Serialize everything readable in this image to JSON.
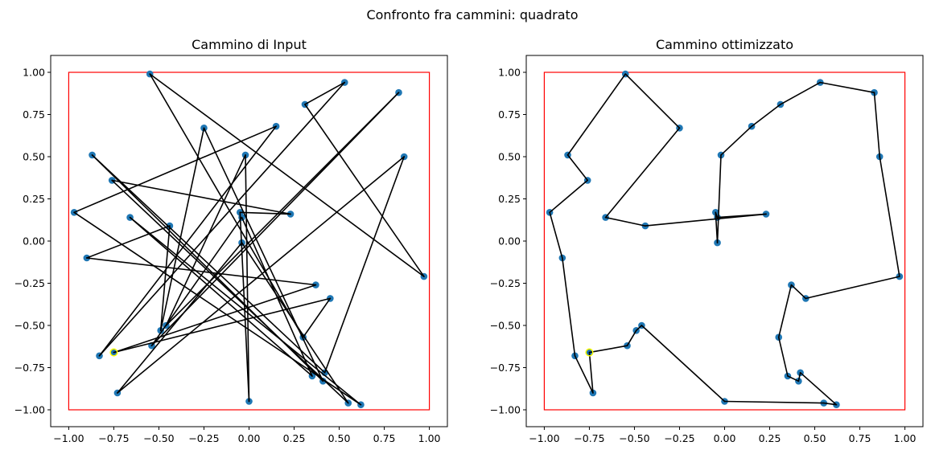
{
  "figure": {
    "suptitle": "Confronto fra cammini: quadrato"
  },
  "chart_data": [
    {
      "type": "scatter",
      "title": "Cammino di Input",
      "xlabel": "",
      "ylabel": "",
      "xlim": [
        -1.1,
        1.1
      ],
      "ylim": [
        -1.1,
        1.1
      ],
      "xticks": [
        -1.0,
        -0.75,
        -0.5,
        -0.25,
        0.0,
        0.25,
        0.5,
        0.75,
        1.0
      ],
      "yticks": [
        -1.0,
        -0.75,
        -0.5,
        -0.25,
        0.0,
        0.25,
        0.5,
        0.75,
        1.0
      ],
      "xtick_labels": [
        "−1.00",
        "−0.75",
        "−0.50",
        "−0.25",
        "0.00",
        "0.25",
        "0.50",
        "0.75",
        "1.00"
      ],
      "ytick_labels": [
        "−1.00",
        "−0.75",
        "−0.50",
        "−0.25",
        "0.00",
        "0.25",
        "0.50",
        "0.75",
        "1.00"
      ],
      "boundary": {
        "x0": -1.0,
        "y0": -1.0,
        "x1": 1.0,
        "y1": 1.0,
        "color": "#ff0000"
      },
      "point_color": "#1f77b4",
      "path_color": "#000000",
      "start_marker_color": "#ffff00",
      "grid": false,
      "points": [
        {
          "x": -0.55,
          "y": 0.99
        },
        {
          "x": 0.53,
          "y": 0.94
        },
        {
          "x": 0.83,
          "y": 0.88
        },
        {
          "x": 0.31,
          "y": 0.81
        },
        {
          "x": -0.25,
          "y": 0.67
        },
        {
          "x": 0.15,
          "y": 0.68
        },
        {
          "x": -0.87,
          "y": 0.51
        },
        {
          "x": -0.02,
          "y": 0.51
        },
        {
          "x": 0.86,
          "y": 0.5
        },
        {
          "x": -0.76,
          "y": 0.36
        },
        {
          "x": -0.97,
          "y": 0.17
        },
        {
          "x": -0.05,
          "y": 0.17
        },
        {
          "x": -0.04,
          "y": 0.14
        },
        {
          "x": 0.23,
          "y": 0.16
        },
        {
          "x": -0.66,
          "y": 0.14
        },
        {
          "x": -0.44,
          "y": 0.09
        },
        {
          "x": -0.04,
          "y": -0.01
        },
        {
          "x": -0.9,
          "y": -0.1
        },
        {
          "x": 0.97,
          "y": -0.21
        },
        {
          "x": 0.37,
          "y": -0.26
        },
        {
          "x": 0.45,
          "y": -0.34
        },
        {
          "x": -0.46,
          "y": -0.5
        },
        {
          "x": -0.49,
          "y": -0.53
        },
        {
          "x": 0.3,
          "y": -0.57
        },
        {
          "x": -0.54,
          "y": -0.62
        },
        {
          "x": -0.83,
          "y": -0.68
        },
        {
          "x": -0.75,
          "y": -0.66
        },
        {
          "x": 0.42,
          "y": -0.78
        },
        {
          "x": 0.35,
          "y": -0.8
        },
        {
          "x": 0.41,
          "y": -0.83
        },
        {
          "x": -0.73,
          "y": -0.9
        },
        {
          "x": 0.0,
          "y": -0.95
        },
        {
          "x": 0.55,
          "y": -0.96
        },
        {
          "x": 0.62,
          "y": -0.97
        }
      ],
      "path": [
        [
          -0.75,
          -0.66
        ],
        [
          0.37,
          -0.26
        ],
        [
          -0.9,
          -0.1
        ],
        [
          -0.44,
          0.09
        ],
        [
          -0.49,
          -0.53
        ],
        [
          -0.25,
          0.67
        ],
        [
          0.41,
          -0.83
        ],
        [
          -0.87,
          0.51
        ],
        [
          0.42,
          -0.78
        ],
        [
          0.86,
          0.5
        ],
        [
          -0.73,
          -0.9
        ],
        [
          -0.04,
          -0.01
        ],
        [
          0.55,
          -0.96
        ],
        [
          -0.76,
          0.36
        ],
        [
          0.23,
          0.16
        ],
        [
          -0.05,
          0.17
        ],
        [
          0.0,
          -0.95
        ],
        [
          -0.02,
          0.51
        ],
        [
          -0.46,
          -0.5
        ],
        [
          0.83,
          0.88
        ],
        [
          -0.54,
          -0.62
        ],
        [
          -0.04,
          0.14
        ],
        [
          0.35,
          -0.8
        ],
        [
          -0.66,
          0.14
        ],
        [
          0.62,
          -0.97
        ],
        [
          -0.97,
          0.17
        ],
        [
          0.15,
          0.68
        ],
        [
          -0.83,
          -0.68
        ],
        [
          0.53,
          0.94
        ],
        [
          0.31,
          0.81
        ],
        [
          0.97,
          -0.21
        ],
        [
          -0.55,
          0.99
        ],
        [
          0.3,
          -0.57
        ],
        [
          0.45,
          -0.34
        ],
        [
          -0.75,
          -0.66
        ]
      ],
      "start": {
        "x": -0.75,
        "y": -0.66
      }
    },
    {
      "type": "scatter",
      "title": "Cammino ottimizzato",
      "xlabel": "",
      "ylabel": "",
      "xlim": [
        -1.1,
        1.1
      ],
      "ylim": [
        -1.1,
        1.1
      ],
      "xticks": [
        -1.0,
        -0.75,
        -0.5,
        -0.25,
        0.0,
        0.25,
        0.5,
        0.75,
        1.0
      ],
      "yticks": [
        -1.0,
        -0.75,
        -0.5,
        -0.25,
        0.0,
        0.25,
        0.5,
        0.75,
        1.0
      ],
      "xtick_labels": [
        "−1.00",
        "−0.75",
        "−0.50",
        "−0.25",
        "0.00",
        "0.25",
        "0.50",
        "0.75",
        "1.00"
      ],
      "ytick_labels": [
        "−1.00",
        "−0.75",
        "−0.50",
        "−0.25",
        "0.00",
        "0.25",
        "0.50",
        "0.75",
        "1.00"
      ],
      "boundary": {
        "x0": -1.0,
        "y0": -1.0,
        "x1": 1.0,
        "y1": 1.0,
        "color": "#ff0000"
      },
      "point_color": "#1f77b4",
      "path_color": "#000000",
      "start_marker_color": "#ffff00",
      "grid": false,
      "points": [
        {
          "x": -0.55,
          "y": 0.99
        },
        {
          "x": 0.53,
          "y": 0.94
        },
        {
          "x": 0.83,
          "y": 0.88
        },
        {
          "x": 0.31,
          "y": 0.81
        },
        {
          "x": -0.25,
          "y": 0.67
        },
        {
          "x": 0.15,
          "y": 0.68
        },
        {
          "x": -0.87,
          "y": 0.51
        },
        {
          "x": -0.02,
          "y": 0.51
        },
        {
          "x": 0.86,
          "y": 0.5
        },
        {
          "x": -0.76,
          "y": 0.36
        },
        {
          "x": -0.97,
          "y": 0.17
        },
        {
          "x": -0.05,
          "y": 0.17
        },
        {
          "x": -0.04,
          "y": 0.14
        },
        {
          "x": 0.23,
          "y": 0.16
        },
        {
          "x": -0.66,
          "y": 0.14
        },
        {
          "x": -0.44,
          "y": 0.09
        },
        {
          "x": -0.04,
          "y": -0.01
        },
        {
          "x": -0.9,
          "y": -0.1
        },
        {
          "x": 0.97,
          "y": -0.21
        },
        {
          "x": 0.37,
          "y": -0.26
        },
        {
          "x": 0.45,
          "y": -0.34
        },
        {
          "x": -0.46,
          "y": -0.5
        },
        {
          "x": -0.49,
          "y": -0.53
        },
        {
          "x": 0.3,
          "y": -0.57
        },
        {
          "x": -0.54,
          "y": -0.62
        },
        {
          "x": -0.83,
          "y": -0.68
        },
        {
          "x": -0.75,
          "y": -0.66
        },
        {
          "x": 0.42,
          "y": -0.78
        },
        {
          "x": 0.35,
          "y": -0.8
        },
        {
          "x": 0.41,
          "y": -0.83
        },
        {
          "x": -0.73,
          "y": -0.9
        },
        {
          "x": 0.0,
          "y": -0.95
        },
        {
          "x": 0.55,
          "y": -0.96
        },
        {
          "x": 0.62,
          "y": -0.97
        }
      ],
      "path": [
        [
          -0.75,
          -0.66
        ],
        [
          -0.54,
          -0.62
        ],
        [
          -0.49,
          -0.53
        ],
        [
          -0.46,
          -0.5
        ],
        [
          0.0,
          -0.95
        ],
        [
          0.55,
          -0.96
        ],
        [
          0.62,
          -0.97
        ],
        [
          0.42,
          -0.78
        ],
        [
          0.41,
          -0.83
        ],
        [
          0.35,
          -0.8
        ],
        [
          0.3,
          -0.57
        ],
        [
          0.37,
          -0.26
        ],
        [
          0.45,
          -0.34
        ],
        [
          0.97,
          -0.21
        ],
        [
          0.86,
          0.5
        ],
        [
          0.83,
          0.88
        ],
        [
          0.53,
          0.94
        ],
        [
          0.31,
          0.81
        ],
        [
          0.15,
          0.68
        ],
        [
          -0.02,
          0.51
        ],
        [
          -0.04,
          -0.01
        ],
        [
          -0.05,
          0.17
        ],
        [
          -0.04,
          0.14
        ],
        [
          0.23,
          0.16
        ],
        [
          -0.44,
          0.09
        ],
        [
          -0.66,
          0.14
        ],
        [
          -0.25,
          0.67
        ],
        [
          -0.55,
          0.99
        ],
        [
          -0.87,
          0.51
        ],
        [
          -0.76,
          0.36
        ],
        [
          -0.97,
          0.17
        ],
        [
          -0.9,
          -0.1
        ],
        [
          -0.83,
          -0.68
        ],
        [
          -0.73,
          -0.9
        ],
        [
          -0.75,
          -0.66
        ]
      ],
      "start": {
        "x": -0.75,
        "y": -0.66
      }
    }
  ]
}
